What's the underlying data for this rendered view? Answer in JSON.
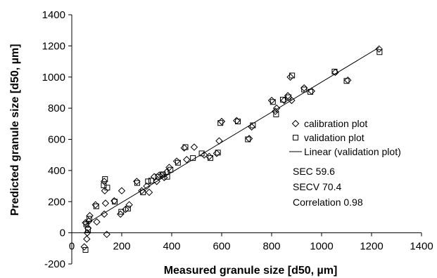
{
  "chart_data": {
    "type": "scatter",
    "title": "",
    "xlabel": "Measured granule size [d50, µm]",
    "ylabel": "Predicted granule size [d50, µm]",
    "xlim": [
      0,
      1400
    ],
    "ylim": [
      -200,
      1400
    ],
    "xticks": [
      "0",
      "200",
      "400",
      "600",
      "800",
      "1000",
      "1200",
      "1400"
    ],
    "yticks": [
      "-200",
      "0",
      "200",
      "400",
      "600",
      "800",
      "1000",
      "1200",
      "1400"
    ],
    "grid": false,
    "legend_position": "right",
    "series": [
      {
        "name": "calibration plot",
        "marker": "diamond",
        "x": [
          50,
          55,
          60,
          62,
          65,
          68,
          72,
          95,
          100,
          130,
          130,
          132,
          135,
          140,
          170,
          195,
          200,
          215,
          230,
          260,
          280,
          300,
          310,
          330,
          340,
          350,
          360,
          370,
          380,
          390,
          420,
          450,
          460,
          490,
          530,
          550,
          580,
          590,
          600,
          660,
          710,
          720,
          800,
          815,
          820,
          850,
          865,
          875,
          880,
          930,
          960,
          1055,
          1105,
          1230
        ],
        "y": [
          -90,
          65,
          -40,
          0,
          30,
          75,
          110,
          180,
          70,
          120,
          330,
          270,
          190,
          -10,
          205,
          120,
          270,
          150,
          180,
          330,
          270,
          300,
          260,
          360,
          330,
          370,
          370,
          355,
          390,
          420,
          460,
          545,
          470,
          550,
          500,
          490,
          510,
          590,
          715,
          720,
          605,
          680,
          850,
          780,
          800,
          850,
          880,
          1000,
          850,
          930,
          910,
          1030,
          980,
          1180
        ]
      },
      {
        "name": "validation plot",
        "marker": "square",
        "x": [
          55,
          58,
          65,
          70,
          98,
          128,
          133,
          142,
          172,
          198,
          225,
          262,
          285,
          305,
          318,
          345,
          365,
          382,
          395,
          425,
          455,
          485,
          520,
          555,
          585,
          595,
          665,
          705,
          725,
          805,
          818,
          845,
          868,
          882,
          930,
          955,
          1052,
          1100,
          1232
        ],
        "y": [
          -110,
          55,
          20,
          90,
          170,
          305,
          345,
          290,
          200,
          135,
          155,
          320,
          260,
          330,
          335,
          360,
          375,
          360,
          405,
          450,
          550,
          480,
          510,
          480,
          515,
          705,
          715,
          600,
          690,
          840,
          760,
          855,
          870,
          1010,
          920,
          905,
          1035,
          975,
          1160
        ]
      },
      {
        "name": "Linear (validation plot)",
        "marker": "line",
        "x": [
          50,
          1230
        ],
        "y": [
          50,
          1190
        ]
      }
    ],
    "annotations": [
      "SEC 59.6",
      "SECV 70.4",
      "Correlation 0.98"
    ]
  }
}
